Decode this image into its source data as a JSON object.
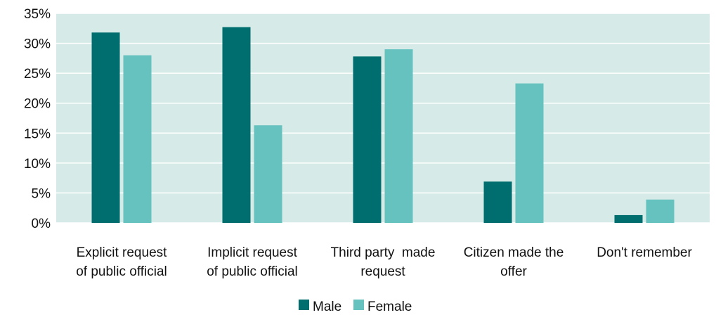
{
  "chart_data": {
    "type": "bar",
    "categories": [
      [
        "Explicit request",
        "of public official"
      ],
      [
        "Implicit request",
        "of public official"
      ],
      [
        "Third party  made",
        "request"
      ],
      [
        "Citizen made the",
        "offer"
      ],
      [
        "Don't remember"
      ]
    ],
    "series": [
      {
        "name": "Male",
        "values": [
          31.8,
          32.7,
          27.8,
          6.9,
          1.3
        ],
        "color": "#006e6e"
      },
      {
        "name": "Female",
        "values": [
          28.0,
          16.3,
          29.0,
          23.3,
          3.9
        ],
        "color": "#66c2bf"
      }
    ],
    "ylim": [
      0,
      35
    ],
    "yticks": [
      0,
      5,
      10,
      15,
      20,
      25,
      30,
      35
    ],
    "ytick_format": "percent",
    "grid": true,
    "plot_background": "#d6ebe8",
    "grid_color": "#ffffff",
    "legend_position": "bottom"
  }
}
